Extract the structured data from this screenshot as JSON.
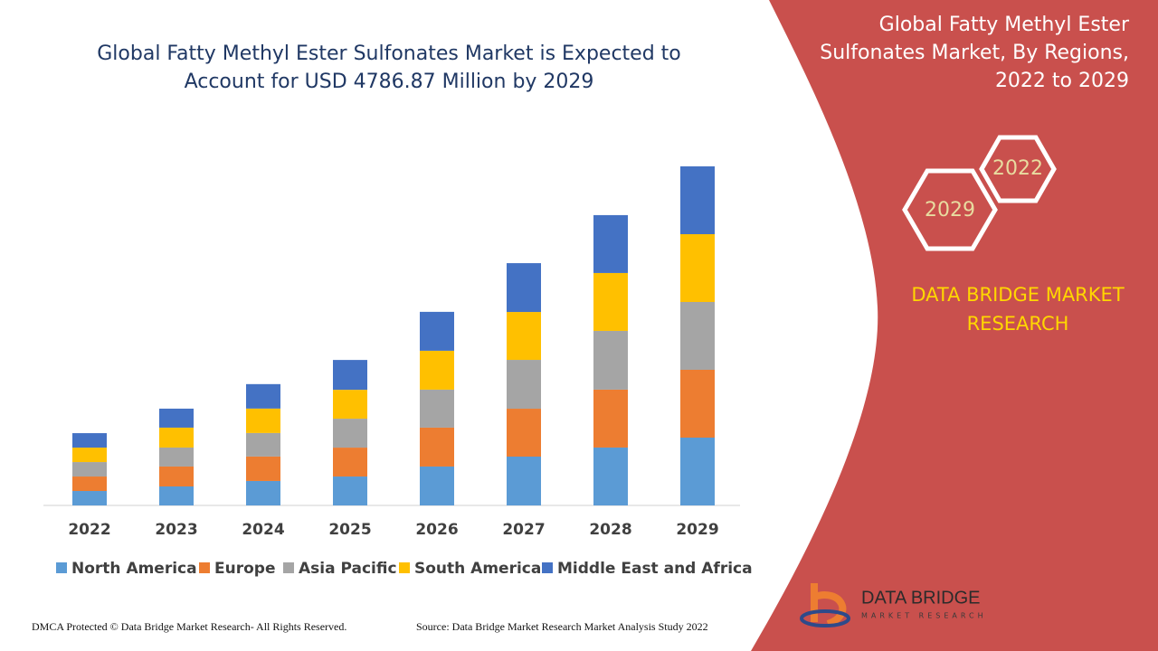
{
  "chart_data": {
    "type": "bar",
    "stacked": true,
    "title": "Global Fatty Methyl Ester Sulfonates Market is Expected to Account for USD 4786.87 Million by 2029",
    "categories": [
      "2022",
      "2023",
      "2024",
      "2025",
      "2026",
      "2027",
      "2028",
      "2029"
    ],
    "series": [
      {
        "name": "North America",
        "color": "#5b9bd5",
        "values": [
          204,
          268,
          345,
          408,
          549,
          689,
          817,
          957
        ]
      },
      {
        "name": "Europe",
        "color": "#ed7d31",
        "values": [
          204,
          281,
          345,
          408,
          549,
          676,
          817,
          957
        ]
      },
      {
        "name": "Asia Pacific",
        "color": "#a5a5a5",
        "values": [
          204,
          268,
          332,
          408,
          536,
          689,
          829,
          957
        ]
      },
      {
        "name": "South America",
        "color": "#ffc000",
        "values": [
          204,
          281,
          345,
          408,
          549,
          676,
          817,
          957
        ]
      },
      {
        "name": "Middle East and Africa",
        "color": "#4472c4",
        "values": [
          204,
          268,
          345,
          421,
          549,
          689,
          817,
          957
        ]
      }
    ],
    "legend": "bottom"
  },
  "panel": {
    "title": "Global Fatty Methyl Ester Sulfonates Market, By Regions, 2022 to 2029",
    "hexagons": [
      "2022",
      "2029"
    ],
    "brand": "DATA BRIDGE MARKET RESEARCH"
  },
  "logo": {
    "name": "DATA BRIDGE",
    "tagline": "MARKET RESEARCH"
  },
  "footer": {
    "copyright": "DMCA Protected © Data Bridge Market Research- All Rights Reserved.",
    "source": "Source: Data Bridge Market Research Market Analysis Study 2022"
  }
}
